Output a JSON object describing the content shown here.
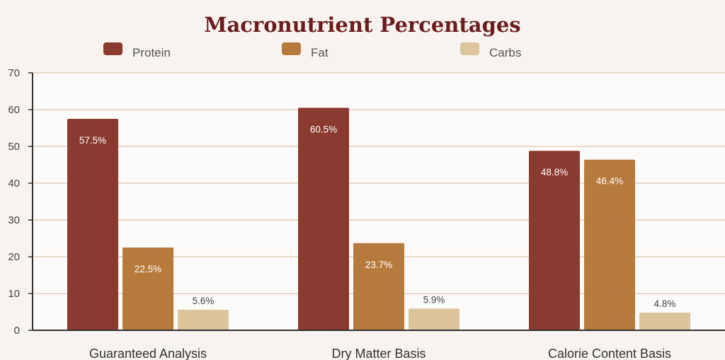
{
  "colors": {
    "background": "#f8f3ef",
    "plot_background": "#fdfbf9",
    "title": "#6b1c1c",
    "gridline": "#ead9cc",
    "axis": "#333333",
    "protein": "#8b3a2f",
    "fat": "#b67b3c",
    "carbs": "#dcc49c"
  },
  "chart_data": {
    "type": "bar",
    "title": "Macronutrient Percentages",
    "xlabel": "",
    "ylabel": "",
    "ylim": [
      0,
      70
    ],
    "yticks": [
      0,
      10,
      20,
      30,
      40,
      50,
      60,
      70
    ],
    "grid": true,
    "legend_position": "top",
    "categories": [
      "Guaranteed Analysis",
      "Dry Matter Basis",
      "Calorie Content Basis"
    ],
    "series": [
      {
        "name": "Protein",
        "color": "#8b3a2f",
        "values": [
          57.5,
          60.5,
          48.8
        ],
        "labels": [
          "57.5%",
          "60.5%",
          "48.8%"
        ]
      },
      {
        "name": "Fat",
        "color": "#b67b3c",
        "values": [
          22.5,
          23.7,
          46.4
        ],
        "labels": [
          "22.5%",
          "23.7%",
          "46.4%"
        ]
      },
      {
        "name": "Carbs",
        "color": "#dcc49c",
        "values": [
          5.6,
          5.9,
          4.8
        ],
        "labels": [
          "5.6%",
          "5.9%",
          "4.8%"
        ]
      }
    ]
  }
}
